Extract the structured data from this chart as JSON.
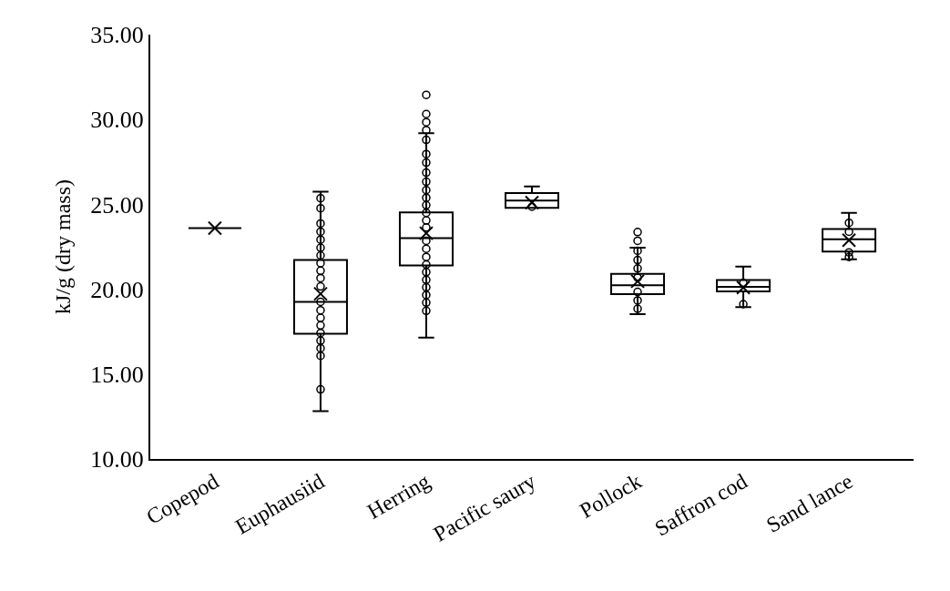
{
  "chart_data": {
    "type": "box",
    "ylabel": "kJ/g (dry mass)",
    "categories": [
      "Copepod",
      "Euphausiid",
      "Herring",
      "Pacific saury",
      "Pollock",
      "Saffron cod",
      "Sand lance"
    ],
    "boxes": [
      {
        "low": 23.6,
        "q1": 23.6,
        "median": 23.6,
        "q3": 23.6,
        "high": 23.6,
        "mean": 23.6
      },
      {
        "low": 12.81,
        "q1": 17.37,
        "median": 19.26,
        "q3": 21.72,
        "high": 25.75,
        "mean": 19.73
      },
      {
        "low": 17.15,
        "q1": 21.4,
        "median": 23.01,
        "q3": 24.53,
        "high": 29.19,
        "mean": 23.3
      },
      {
        "low": 24.8,
        "q1": 24.8,
        "median": 25.22,
        "q3": 25.66,
        "high": 26.06,
        "mean": 25.1
      },
      {
        "low": 18.53,
        "q1": 19.71,
        "median": 20.23,
        "q3": 20.91,
        "high": 22.44,
        "mean": 20.47
      },
      {
        "low": 18.94,
        "q1": 19.87,
        "median": 20.14,
        "q3": 20.54,
        "high": 21.33,
        "mean": 20.1
      },
      {
        "low": 21.76,
        "q1": 22.22,
        "median": 22.94,
        "q3": 23.55,
        "high": 24.5,
        "mean": 22.89
      }
    ],
    "series": [
      {
        "type": "scatter",
        "color": "#000000",
        "marker": "circle",
        "x": [
          "Euphausiid",
          "Euphausiid",
          "Euphausiid",
          "Euphausiid",
          "Euphausiid",
          "Euphausiid",
          "Euphausiid",
          "Euphausiid",
          "Euphausiid",
          "Euphausiid",
          "Euphausiid",
          "Euphausiid",
          "Euphausiid",
          "Euphausiid",
          "Euphausiid",
          "Euphausiid",
          "Euphausiid",
          "Euphausiid",
          "Euphausiid",
          "Euphausiid",
          "Herring",
          "Herring",
          "Herring",
          "Herring",
          "Herring",
          "Herring",
          "Herring",
          "Herring",
          "Herring",
          "Herring",
          "Herring",
          "Herring",
          "Herring",
          "Herring",
          "Herring",
          "Herring",
          "Herring",
          "Herring",
          "Herring",
          "Herring",
          "Herring",
          "Herring",
          "Herring",
          "Herring",
          "Herring",
          "Pacific saury",
          "Pollock",
          "Pollock",
          "Pollock",
          "Pollock",
          "Pollock",
          "Pollock",
          "Pollock",
          "Pollock",
          "Pollock",
          "Saffron cod",
          "Saffron cod",
          "Sand lance",
          "Sand lance",
          "Sand lance",
          "Sand lance"
        ],
        "values": [
          25.36,
          24.77,
          23.87,
          23.39,
          22.92,
          22.44,
          21.99,
          21.54,
          21.09,
          20.65,
          20.16,
          19.26,
          18.76,
          18.31,
          17.87,
          17.42,
          16.97,
          16.52,
          16.08,
          14.1,
          31.45,
          30.32,
          29.84,
          29.37,
          28.8,
          27.96,
          27.46,
          26.87,
          26.33,
          25.84,
          25.39,
          24.95,
          24.5,
          24.05,
          23.64,
          22.85,
          22.38,
          21.9,
          21.45,
          21.01,
          20.55,
          20.11,
          19.66,
          19.21,
          18.73,
          24.86,
          23.37,
          22.85,
          22.26,
          21.72,
          21.22,
          20.68,
          19.84,
          19.34,
          18.85,
          20.38,
          19.12,
          23.91,
          23.39,
          22.17,
          21.9
        ]
      }
    ],
    "ylim": [
      10,
      35
    ],
    "yticks": [
      {
        "value": 10,
        "label": "10.00"
      },
      {
        "value": 15,
        "label": "15.00"
      },
      {
        "value": 20,
        "label": "20.00"
      },
      {
        "value": 25,
        "label": "25.00"
      },
      {
        "value": 30,
        "label": "30.00"
      },
      {
        "value": 35,
        "label": "35.00"
      }
    ]
  }
}
